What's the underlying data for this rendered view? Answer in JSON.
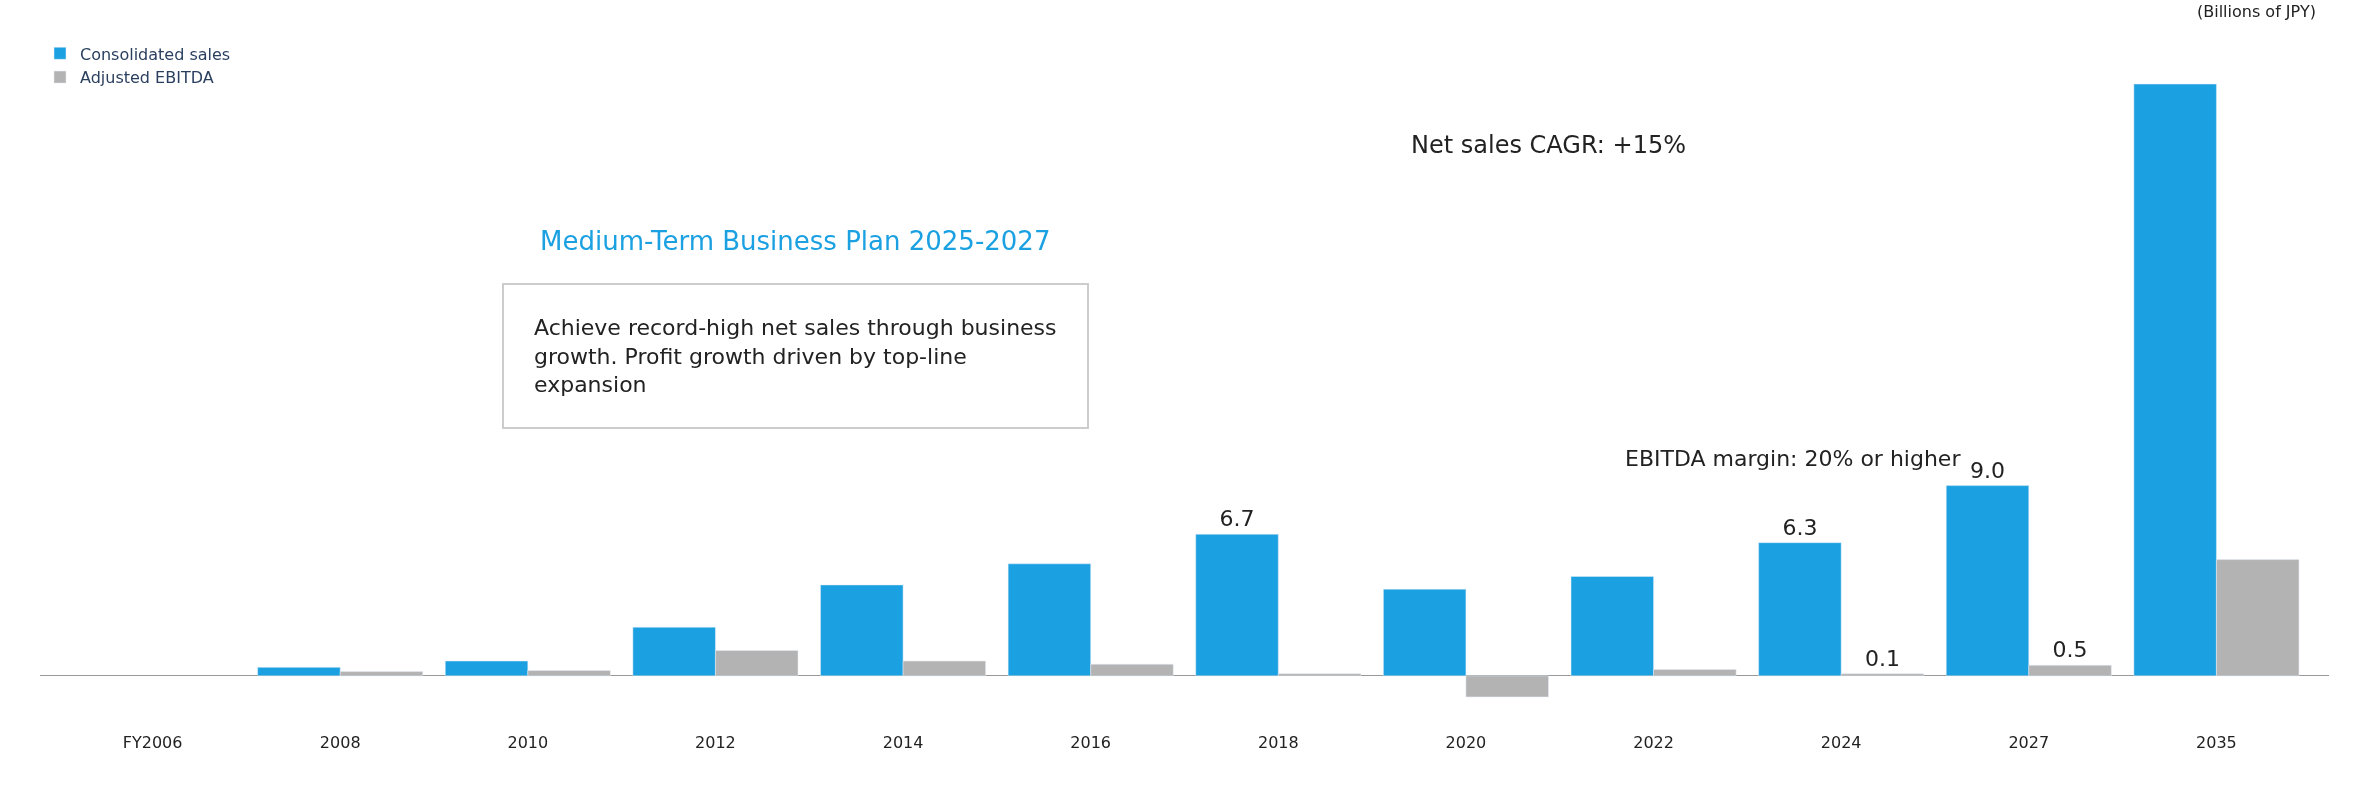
{
  "chart_data": {
    "type": "bar",
    "categories": [
      "FY2006",
      "2008",
      "2010",
      "2012",
      "2014",
      "2016",
      "2018",
      "2020",
      "2022",
      "2024",
      "2027",
      "2035"
    ],
    "series": [
      {
        "name": "Consolidated sales",
        "color": "#1ba1e2",
        "values": [
          null,
          0.4,
          0.7,
          2.3,
          4.3,
          5.3,
          6.7,
          4.1,
          4.7,
          6.3,
          9.0,
          28
        ],
        "value_labels": [
          null,
          null,
          null,
          null,
          null,
          null,
          "6.7",
          null,
          null,
          "6.3",
          "9.0",
          null
        ]
      },
      {
        "name": "Adjusted EBITDA",
        "color": "#b3b3b3",
        "values": [
          null,
          0.2,
          0.25,
          1.2,
          0.7,
          0.55,
          0.1,
          -1.0,
          0.3,
          0.1,
          0.5,
          5.5
        ],
        "value_labels": [
          null,
          null,
          null,
          null,
          null,
          null,
          null,
          null,
          null,
          "0.1",
          "0.5",
          null
        ]
      }
    ],
    "tick_labels": "x",
    "legend": "top left",
    "annotations": [
      "(Billions of JPY)",
      "Medium-Term Business Plan 2025-2027",
      "Achieve record-high net sales through business growth. Profit growth driven by top-line expansion",
      "Net sales CAGR: +15%",
      "EBITDA margin: 20% or higher"
    ]
  }
}
